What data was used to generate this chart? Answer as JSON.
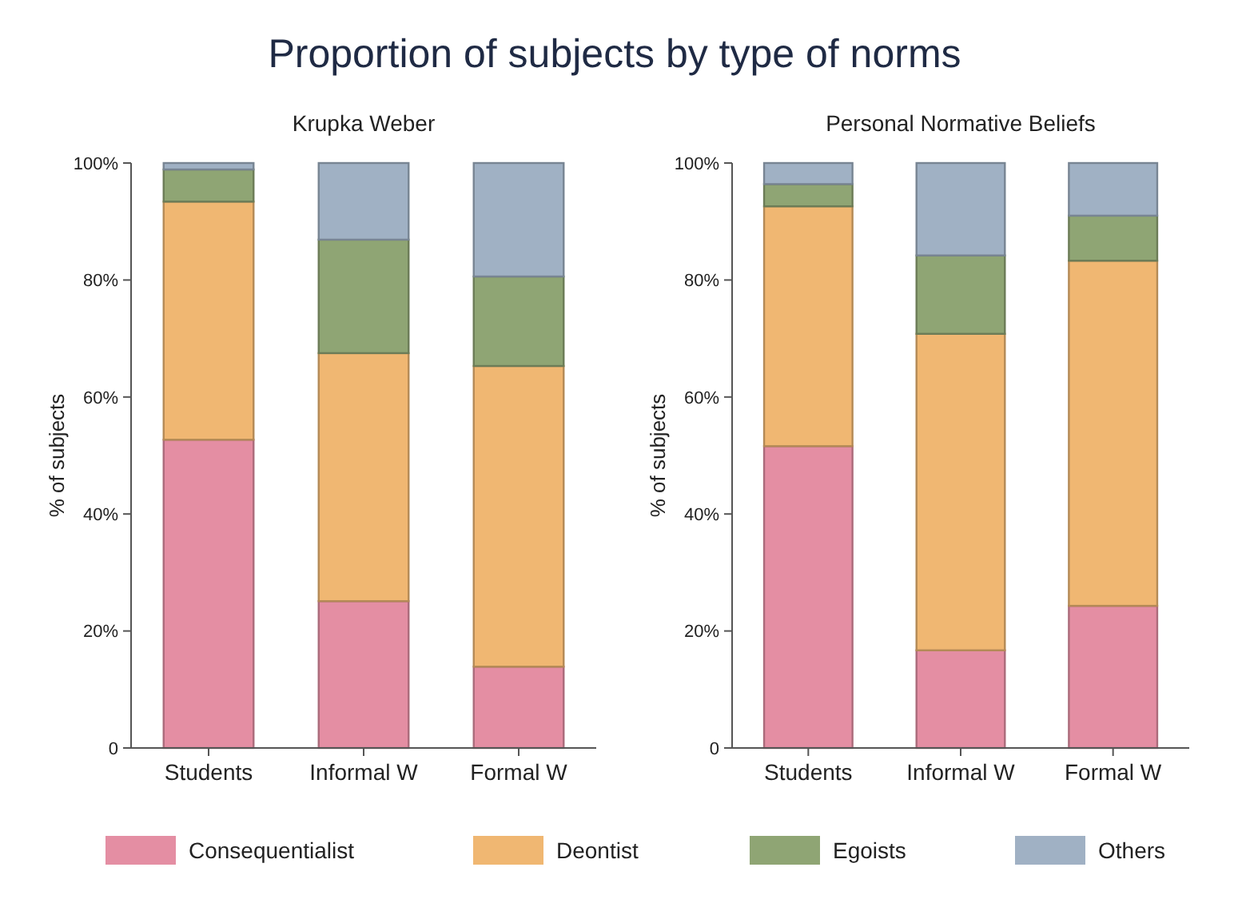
{
  "chart_data": [
    {
      "type": "bar",
      "title": "Proportion of subjects by type of norms",
      "subtitle": "Krupka Weber",
      "ylabel": "% of subjects",
      "categories": [
        "Students",
        "Informal W",
        "Formal W"
      ],
      "stacked": true,
      "legend": "bottom",
      "grid": false,
      "ylim": [
        0,
        100
      ],
      "yticks": [
        {
          "value": 0,
          "label": "0"
        },
        {
          "value": 20,
          "label": "20%"
        },
        {
          "value": 40,
          "label": "40%"
        },
        {
          "value": 60,
          "label": "60%"
        },
        {
          "value": 80,
          "label": "80%"
        },
        {
          "value": 100,
          "label": "100%"
        }
      ],
      "series": [
        {
          "name": "Consequentialist",
          "color": "#e48ea3",
          "values": [
            52.7,
            25.1,
            13.9
          ]
        },
        {
          "name": "Deontist",
          "color": "#f0b772",
          "values": [
            40.7,
            42.4,
            51.4
          ]
        },
        {
          "name": "Egoists",
          "color": "#8fa574",
          "values": [
            5.5,
            19.4,
            15.3
          ]
        },
        {
          "name": "Others",
          "color": "#a0b1c4",
          "values": [
            1.1,
            13.1,
            19.4
          ]
        }
      ]
    },
    {
      "type": "bar",
      "subtitle": "Personal Normative Beliefs",
      "ylabel": "% of subjects",
      "categories": [
        "Students",
        "Informal W",
        "Formal W"
      ],
      "stacked": true,
      "grid": false,
      "ylim": [
        0,
        100
      ],
      "yticks": [
        {
          "value": 0,
          "label": "0"
        },
        {
          "value": 20,
          "label": "20%"
        },
        {
          "value": 40,
          "label": "40%"
        },
        {
          "value": 60,
          "label": "60%"
        },
        {
          "value": 80,
          "label": "80%"
        },
        {
          "value": 100,
          "label": "100%"
        }
      ],
      "series": [
        {
          "color": "#e48ea3",
          "values": [
            51.6,
            16.7,
            24.3
          ]
        },
        {
          "color": "#f0b772",
          "values": [
            41.0,
            54.1,
            59.0
          ]
        },
        {
          "color": "#8fa574",
          "values": [
            3.8,
            13.4,
            7.7
          ]
        },
        {
          "color": "#a0b1c4",
          "values": [
            3.6,
            15.8,
            9.0
          ]
        }
      ]
    }
  ]
}
